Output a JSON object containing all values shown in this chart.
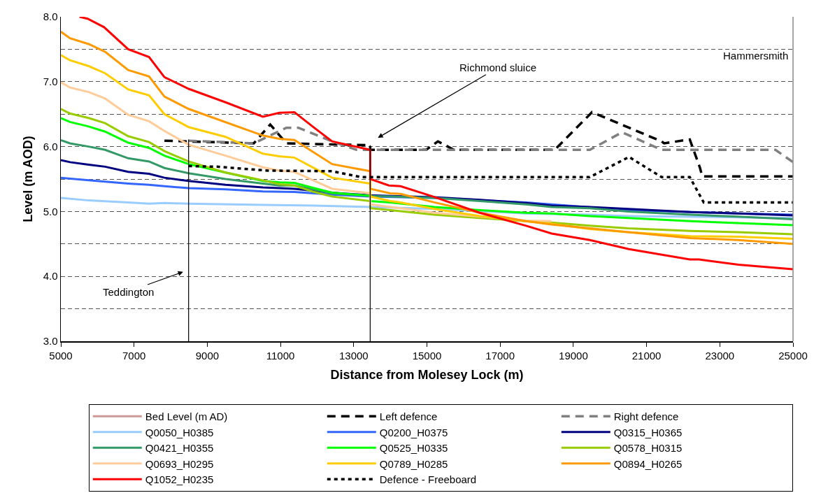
{
  "chart_data": {
    "type": "line",
    "xlabel": "Distance from Molesey Lock (m)",
    "ylabel": "Level (m AOD)",
    "xlim": [
      5000,
      25000
    ],
    "xticks": [
      5000,
      7000,
      9000,
      11000,
      13000,
      15000,
      17000,
      19000,
      21000,
      23000,
      25000
    ],
    "ylim": [
      3,
      8
    ],
    "yticks": [
      {
        "value": 3,
        "label": "3.0"
      },
      {
        "value": 3.5,
        "label": null
      },
      {
        "value": 4,
        "label": "4.0"
      },
      {
        "value": 4.5,
        "label": null
      },
      {
        "value": 5,
        "label": "5.0"
      },
      {
        "value": 5.5,
        "label": null
      },
      {
        "value": 6,
        "label": "6.0"
      },
      {
        "value": 6.5,
        "label": null
      },
      {
        "value": 7,
        "label": "7.0"
      },
      {
        "value": 7.5,
        "label": null
      },
      {
        "value": 8,
        "label": "8.0"
      }
    ],
    "grid": "y",
    "legend": "bottom",
    "marker": "none",
    "annotations": [
      "Teddington",
      "Richmond sluice",
      "Hammersmith"
    ],
    "series": [
      {
        "name": "Bed Level (m AD)",
        "color": "#cc9999",
        "values": [
          null
        ]
      },
      {
        "name": "Left defence",
        "color": "#000000",
        "line_style": "dashed",
        "x": [
          7830,
          10270,
          10720,
          11160,
          13450,
          13450,
          14980,
          15300,
          15740,
          18490,
          19510,
          21410,
          21480,
          22180,
          22460,
          22520,
          25000
        ],
        "values": [
          6.09,
          6.05,
          6.34,
          6.05,
          6.02,
          5.95,
          5.95,
          6.08,
          5.95,
          5.95,
          6.53,
          6.08,
          6.05,
          6.11,
          5.67,
          5.54,
          5.54
        ]
      },
      {
        "name": "Right defence",
        "color": "#808080",
        "line_style": "dashed",
        "x": [
          8490,
          10270,
          11160,
          11490,
          12410,
          13080,
          19450,
          20330,
          21410,
          24520,
          25000
        ],
        "values": [
          6.09,
          6.05,
          6.29,
          6.29,
          6.08,
          5.95,
          5.95,
          6.22,
          5.95,
          5.95,
          5.76
        ]
      },
      {
        "name": "Q0050_H0385",
        "color": "#99ccff",
        "x": [
          5000,
          5760,
          6840,
          7410,
          7830,
          8490,
          10520,
          11920,
          13450,
          15200,
          17700,
          19450,
          20500,
          23500,
          25000
        ],
        "values": [
          5.21,
          5.17,
          5.14,
          5.12,
          5.13,
          5.12,
          5.1,
          5.09,
          5.07,
          5.04,
          4.97,
          4.95,
          4.93,
          4.91,
          4.9
        ]
      },
      {
        "name": "Q0200_H0375",
        "color": "#3366ff",
        "x": [
          5000,
          5760,
          6840,
          7410,
          7830,
          8490,
          9500,
          10520,
          11380,
          12410,
          13450,
          15200,
          17700,
          20500,
          23500,
          25000
        ],
        "values": [
          5.52,
          5.48,
          5.43,
          5.41,
          5.39,
          5.36,
          5.34,
          5.31,
          5.3,
          5.26,
          5.23,
          5.21,
          5.14,
          5.02,
          4.97,
          4.95
        ]
      },
      {
        "name": "Q0315_H0365",
        "color": "#000080",
        "x": [
          5000,
          5250,
          5760,
          6210,
          6840,
          7410,
          7830,
          8490,
          9500,
          10520,
          10970,
          11380,
          12410,
          13450,
          14000,
          15200,
          16450,
          17700,
          18400,
          19450,
          20500,
          22200,
          23500,
          25000
        ],
        "values": [
          5.79,
          5.76,
          5.72,
          5.69,
          5.61,
          5.58,
          5.52,
          5.47,
          5.41,
          5.37,
          5.36,
          5.35,
          5.29,
          5.25,
          5.24,
          5.22,
          5.18,
          5.13,
          5.09,
          5.07,
          5.04,
          4.99,
          4.97,
          4.94
        ]
      },
      {
        "name": "Q0421_H0355",
        "color": "#339966",
        "x": [
          5000,
          5250,
          5760,
          6210,
          6840,
          7410,
          7830,
          8490,
          9500,
          10520,
          10970,
          11380,
          12410,
          13450,
          14000,
          15200,
          16450,
          17700,
          18400,
          19450,
          20500,
          22200,
          23500,
          25000
        ],
        "values": [
          6.1,
          6.05,
          6.0,
          5.95,
          5.82,
          5.77,
          5.67,
          5.59,
          5.5,
          5.43,
          5.4,
          5.4,
          5.28,
          5.24,
          5.23,
          5.21,
          5.16,
          5.11,
          5.07,
          5.05,
          5.0,
          4.95,
          4.92,
          4.88
        ]
      },
      {
        "name": "Q0525_H0335",
        "color": "#00ff00",
        "x": [
          5000,
          5250,
          5760,
          6210,
          6840,
          7410,
          7830,
          8490,
          9500,
          10520,
          10970,
          11380,
          11920,
          12410,
          13450,
          13450,
          14000,
          15200,
          16450,
          17700,
          18400,
          19450,
          20500,
          22200,
          23500,
          25000
        ],
        "values": [
          6.44,
          6.38,
          6.31,
          6.23,
          6.06,
          5.98,
          5.86,
          5.73,
          5.6,
          5.47,
          5.45,
          5.44,
          5.36,
          5.29,
          5.24,
          5.16,
          5.14,
          5.07,
          5.02,
          4.98,
          4.97,
          4.93,
          4.9,
          4.85,
          4.82,
          4.79
        ]
      },
      {
        "name": "Q0578_H0315",
        "color": "#99cc00",
        "x": [
          5000,
          5250,
          5760,
          6210,
          6840,
          7410,
          7830,
          8490,
          9500,
          10520,
          10970,
          11380,
          11920,
          12410,
          13450,
          13450,
          14000,
          15200,
          16450,
          17700,
          18400,
          19450,
          20500,
          22200,
          23500,
          25000
        ],
        "values": [
          6.58,
          6.51,
          6.44,
          6.36,
          6.16,
          6.07,
          5.93,
          5.77,
          5.6,
          5.48,
          5.42,
          5.4,
          5.3,
          5.23,
          5.16,
          5.05,
          5.02,
          4.95,
          4.9,
          4.85,
          4.83,
          4.78,
          4.74,
          4.7,
          4.68,
          4.65
        ]
      },
      {
        "name": "Q0693_H0295",
        "color": "#ffcc99",
        "x": [
          5000,
          5250,
          5760,
          6210,
          6840,
          7410,
          7830,
          8490,
          9500,
          10520,
          10970,
          11380,
          12410,
          13450,
          13450,
          14000,
          14280,
          15200,
          16450,
          17700,
          18400
        ],
        "values": [
          6.99,
          6.91,
          6.84,
          6.74,
          6.49,
          6.39,
          6.24,
          6.03,
          5.86,
          5.68,
          5.63,
          5.61,
          5.35,
          5.28,
          5.11,
          5.07,
          5.05,
          4.98,
          4.92,
          4.86,
          4.85
        ]
      },
      {
        "name": "Q0789_H0285",
        "color": "#ffcc00",
        "x": [
          5000,
          5250,
          5760,
          6210,
          6840,
          7410,
          7830,
          8490,
          9500,
          10520,
          10970,
          11380,
          12410,
          13450,
          13450,
          14000,
          14280,
          15200,
          16450,
          17700,
          18400,
          19450,
          20500,
          22200,
          23500,
          25000
        ],
        "values": [
          7.41,
          7.33,
          7.24,
          7.13,
          6.88,
          6.79,
          6.5,
          6.3,
          6.15,
          5.89,
          5.85,
          5.83,
          5.52,
          5.43,
          5.23,
          5.16,
          5.14,
          5.04,
          4.93,
          4.85,
          4.81,
          4.73,
          4.68,
          4.62,
          4.61,
          4.58
        ]
      },
      {
        "name": "Q0894_H0265",
        "color": "#ff9900",
        "x": [
          5000,
          5250,
          5760,
          6210,
          6840,
          7410,
          7830,
          8490,
          10520,
          10970,
          11380,
          12410,
          13450,
          13450,
          14000,
          14280,
          15200,
          16450,
          17700,
          18400,
          19450,
          20500,
          22200,
          23500,
          25000
        ],
        "values": [
          7.77,
          7.67,
          7.58,
          7.46,
          7.18,
          7.08,
          6.77,
          6.58,
          6.17,
          6.12,
          6.1,
          5.73,
          5.62,
          5.35,
          5.28,
          5.27,
          5.14,
          4.98,
          4.85,
          4.8,
          4.74,
          4.68,
          4.59,
          4.56,
          4.5
        ]
      },
      {
        "name": "Q1052_H0235",
        "color": "#ff0000",
        "x": [
          5510,
          5730,
          6180,
          6840,
          7410,
          7830,
          8490,
          9510,
          10520,
          10970,
          11380,
          11920,
          12410,
          13450,
          13450,
          13960,
          14280,
          15170,
          16440,
          17710,
          18410,
          19450,
          20520,
          22180,
          22430,
          23510,
          25000
        ],
        "values": [
          8.0,
          7.97,
          7.84,
          7.5,
          7.38,
          7.07,
          6.89,
          6.68,
          6.46,
          6.52,
          6.53,
          6.29,
          6.08,
          5.95,
          5.5,
          5.4,
          5.39,
          5.23,
          4.98,
          4.78,
          4.66,
          4.56,
          4.42,
          4.26,
          4.26,
          4.18,
          4.11
        ]
      },
      {
        "name": "Defence - Freeboard",
        "color": "#000000",
        "line_style": "dotted",
        "x": [
          8490,
          9260,
          10650,
          12410,
          13200,
          19450,
          20520,
          21410,
          22180,
          22560,
          25000
        ],
        "values": [
          5.7,
          5.69,
          5.63,
          5.62,
          5.53,
          5.53,
          5.84,
          5.53,
          5.53,
          5.14,
          5.14
        ]
      },
      {
        "color": "#000000",
        "x": [
          8490,
          8490
        ],
        "values": [
          3,
          6.11
        ]
      },
      {
        "color": "#000000",
        "x": [
          13450,
          13450
        ],
        "values": [
          3,
          6.02
        ]
      }
    ]
  }
}
